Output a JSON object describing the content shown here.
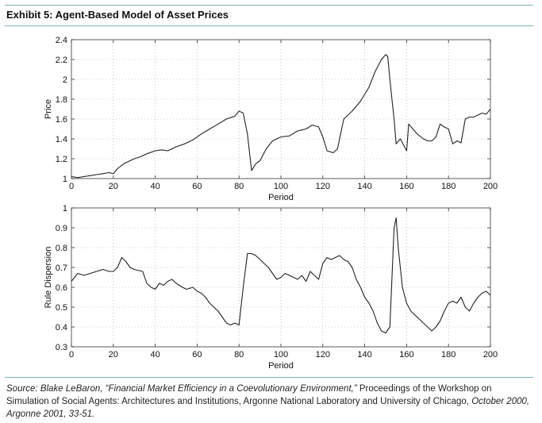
{
  "exhibit_title": "Exhibit 5: Agent-Based Model of Asset Prices",
  "source": {
    "prefix": "Source: Blake LeBaron, “Financial Market Efficiency in a Coevolutionary Environment,”",
    "middle": " Proceedings of the Workshop on Simulation of Social Agents: Architectures and Institutions, Argonne National Laboratory and University of Chicago, ",
    "suffix": "October 2000, Argonne 2001, 33-51."
  },
  "colors": {
    "rule": "#7fb3b5",
    "line": "#222222",
    "grid": "#999999"
  },
  "chart_data": [
    {
      "type": "line",
      "title": "",
      "xlabel": "Period",
      "ylabel": "Price",
      "xlim": [
        0,
        200
      ],
      "ylim": [
        1,
        2.4
      ],
      "xticks": [
        "0",
        "20",
        "40",
        "60",
        "80",
        "100",
        "120",
        "140",
        "160",
        "180",
        "200"
      ],
      "yticks": [
        "1",
        "1.2",
        "1.4",
        "1.6",
        "1.8",
        "2",
        "2.2",
        "2.4"
      ],
      "grid": true,
      "series": [
        {
          "name": "Price",
          "x": [
            0,
            3,
            6,
            9,
            12,
            15,
            18,
            20,
            22,
            25,
            28,
            30,
            33,
            36,
            40,
            43,
            46,
            50,
            54,
            58,
            62,
            66,
            70,
            74,
            78,
            80,
            82,
            84,
            86,
            88,
            90,
            93,
            96,
            100,
            104,
            108,
            112,
            115,
            118,
            120,
            122,
            125,
            127,
            130,
            134,
            138,
            142,
            145,
            148,
            150,
            151,
            152,
            153,
            154,
            155,
            157,
            159,
            160,
            161,
            163,
            165,
            168,
            170,
            172,
            174,
            176,
            178,
            180,
            182,
            184,
            186,
            188,
            190,
            192,
            194,
            196,
            198,
            200
          ],
          "values": [
            1.02,
            1.01,
            1.02,
            1.03,
            1.04,
            1.05,
            1.06,
            1.05,
            1.1,
            1.15,
            1.18,
            1.2,
            1.22,
            1.25,
            1.28,
            1.29,
            1.28,
            1.32,
            1.35,
            1.39,
            1.45,
            1.5,
            1.55,
            1.6,
            1.63,
            1.68,
            1.66,
            1.45,
            1.08,
            1.15,
            1.18,
            1.3,
            1.38,
            1.42,
            1.43,
            1.48,
            1.5,
            1.54,
            1.52,
            1.42,
            1.28,
            1.26,
            1.3,
            1.6,
            1.68,
            1.78,
            1.92,
            2.08,
            2.2,
            2.25,
            2.23,
            2.0,
            1.8,
            1.6,
            1.35,
            1.4,
            1.32,
            1.28,
            1.55,
            1.5,
            1.45,
            1.4,
            1.38,
            1.38,
            1.42,
            1.55,
            1.52,
            1.5,
            1.35,
            1.38,
            1.36,
            1.6,
            1.62,
            1.62,
            1.64,
            1.66,
            1.65,
            1.7
          ]
        }
      ]
    },
    {
      "type": "line",
      "title": "",
      "xlabel": "Period",
      "ylabel": "Rule Dispersion",
      "xlim": [
        0,
        200
      ],
      "ylim": [
        0.3,
        1
      ],
      "xticks": [
        "0",
        "20",
        "40",
        "60",
        "80",
        "100",
        "120",
        "140",
        "160",
        "180",
        "200"
      ],
      "yticks": [
        "0.3",
        "0.4",
        "0.5",
        "0.6",
        "0.7",
        "0.8",
        "0.9",
        "1"
      ],
      "grid": true,
      "series": [
        {
          "name": "Rule Dispersion",
          "x": [
            0,
            3,
            6,
            9,
            12,
            15,
            18,
            20,
            22,
            24,
            26,
            28,
            30,
            34,
            36,
            38,
            40,
            42,
            44,
            46,
            48,
            50,
            53,
            55,
            58,
            60,
            62,
            64,
            66,
            68,
            70,
            72,
            74,
            76,
            78,
            80,
            82,
            84,
            86,
            88,
            90,
            92,
            94,
            96,
            98,
            100,
            102,
            104,
            106,
            108,
            110,
            112,
            114,
            116,
            118,
            120,
            122,
            124,
            126,
            128,
            130,
            132,
            134,
            136,
            138,
            140,
            142,
            144,
            146,
            148,
            150,
            152,
            154,
            155,
            156,
            158,
            160,
            162,
            164,
            166,
            168,
            170,
            172,
            174,
            176,
            178,
            180,
            182,
            184,
            186,
            188,
            190,
            192,
            194,
            196,
            198,
            200
          ],
          "values": [
            0.63,
            0.67,
            0.66,
            0.67,
            0.68,
            0.69,
            0.68,
            0.68,
            0.7,
            0.75,
            0.73,
            0.7,
            0.69,
            0.68,
            0.62,
            0.6,
            0.59,
            0.62,
            0.61,
            0.63,
            0.64,
            0.62,
            0.6,
            0.59,
            0.6,
            0.58,
            0.57,
            0.55,
            0.52,
            0.5,
            0.48,
            0.45,
            0.42,
            0.41,
            0.42,
            0.41,
            0.6,
            0.77,
            0.77,
            0.76,
            0.74,
            0.72,
            0.7,
            0.67,
            0.64,
            0.65,
            0.67,
            0.66,
            0.65,
            0.64,
            0.66,
            0.63,
            0.68,
            0.66,
            0.64,
            0.72,
            0.75,
            0.74,
            0.75,
            0.76,
            0.74,
            0.73,
            0.7,
            0.64,
            0.6,
            0.55,
            0.52,
            0.48,
            0.42,
            0.38,
            0.37,
            0.4,
            0.9,
            0.95,
            0.8,
            0.6,
            0.52,
            0.48,
            0.46,
            0.44,
            0.42,
            0.4,
            0.38,
            0.4,
            0.43,
            0.48,
            0.52,
            0.53,
            0.52,
            0.55,
            0.5,
            0.48,
            0.52,
            0.55,
            0.57,
            0.58,
            0.56
          ]
        }
      ]
    }
  ]
}
